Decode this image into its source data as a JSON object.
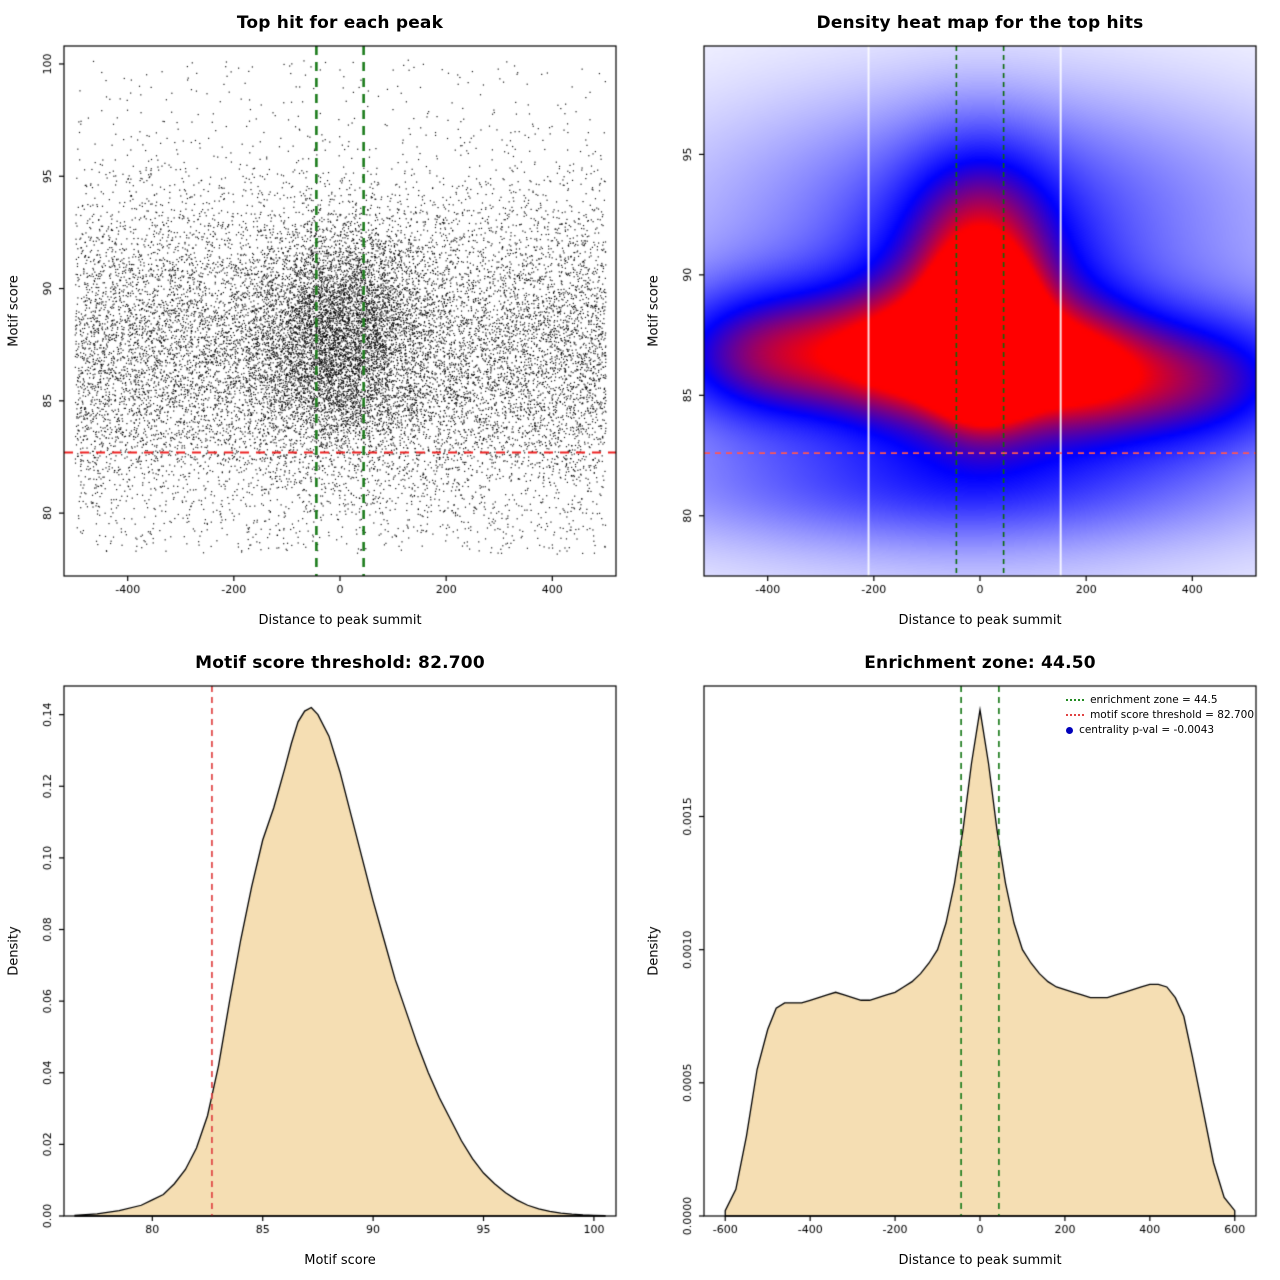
{
  "figure": {
    "background": "#ffffff",
    "panels": [
      "top-hit-scatter",
      "density-heatmap",
      "motif-score-density",
      "distance-density"
    ]
  },
  "chart_data": [
    {
      "type": "scatter",
      "title": "Top hit for each peak",
      "xlabel": "Distance to peak summit",
      "ylabel": "Motif score",
      "xlim": [
        -520,
        520
      ],
      "ylim": [
        77.2,
        100.8
      ],
      "xticks": [
        -400,
        -200,
        0,
        200,
        400
      ],
      "yticks": [
        80,
        85,
        90,
        95,
        100
      ],
      "point_color": "#000000",
      "vlines": [
        {
          "x": -44.5,
          "color": "#1e7d1e",
          "dash": [
            9,
            7
          ],
          "width": 2.6
        },
        {
          "x": 44.5,
          "color": "#1e7d1e",
          "dash": [
            9,
            7
          ],
          "width": 2.6
        }
      ],
      "hlines": [
        {
          "y": 82.7,
          "color": "#ee2222",
          "dash": [
            9,
            7
          ],
          "width": 1.8
        }
      ],
      "point_cloud": {
        "seed": 20240613,
        "x_range": [
          -500,
          500
        ],
        "y_range": [
          78.2,
          100.2
        ],
        "background": {
          "n": 13500,
          "y_mean": 87.1,
          "y_sd": 3.7
        },
        "cluster": {
          "n": 5200,
          "x_sd": 80,
          "y_mean": 87.9,
          "y_sd": 2.5
        },
        "uniform": {
          "n": 900
        }
      }
    },
    {
      "type": "heatmap",
      "title": "Density heat map for the top hits",
      "xlabel": "Distance to peak summit",
      "ylabel": "Motif score",
      "xlim": [
        -520,
        520
      ],
      "ylim": [
        77.5,
        99.5
      ],
      "xticks": [
        -400,
        -200,
        0,
        200,
        400
      ],
      "yticks": [
        80,
        85,
        90,
        95
      ],
      "vlines": [
        {
          "x": -44.5,
          "color": "#0b6b0b",
          "dash": [
            5,
            4
          ],
          "width": 1.6
        },
        {
          "x": 44.5,
          "color": "#0b6b0b",
          "dash": [
            5,
            4
          ],
          "width": 1.6
        }
      ],
      "hlines": [
        {
          "y": 82.6,
          "color": "#ff5555",
          "dash": [
            6,
            5
          ],
          "width": 1.6
        }
      ],
      "white_lines": [
        -210,
        152
      ],
      "components": [
        {
          "amp": 1.3,
          "x0": 5,
          "sx": 62,
          "y0": 87.3,
          "sy": 2.0
        },
        {
          "amp": 0.5,
          "x0": 0,
          "sx": 150,
          "y0": 88.2,
          "sy": 3.6
        },
        {
          "amp": 0.62,
          "x0": -380,
          "sx": 150,
          "y0": 86.7,
          "sy": 1.9
        },
        {
          "amp": 0.55,
          "x0": 380,
          "sx": 170,
          "y0": 85.6,
          "sy": 1.9
        },
        {
          "amp": 0.5,
          "x0": -130,
          "sx": 110,
          "y0": 86.6,
          "sy": 1.8
        },
        {
          "amp": 0.48,
          "x0": 160,
          "sx": 110,
          "y0": 86.2,
          "sy": 1.8
        },
        {
          "amp": 0.26,
          "x0": 0,
          "sx": 430,
          "y0": 87.2,
          "sy": 5.5
        },
        {
          "amp": 0.22,
          "x0": -60,
          "sx": 380,
          "y0": 81.2,
          "sy": 1.6
        },
        {
          "amp": 0.14,
          "x0": 60,
          "sx": 330,
          "y0": 93.8,
          "sy": 2.6
        },
        {
          "amp": 0.3,
          "x0": 0,
          "sx": 90,
          "y0": 92.0,
          "sy": 2.6
        }
      ]
    },
    {
      "type": "density",
      "title": "Motif score threshold: 82.700",
      "xlabel": "Motif score",
      "ylabel": "Density",
      "xlim": [
        76,
        101
      ],
      "ylim": [
        0,
        0.148
      ],
      "xticks": [
        80,
        85,
        90,
        95,
        100
      ],
      "yticks": [
        0,
        0.02,
        0.04,
        0.06,
        0.08,
        0.1,
        0.12,
        0.14
      ],
      "ytick_labels": [
        "0.00",
        "0.02",
        "0.04",
        "0.06",
        "0.08",
        "0.10",
        "0.12",
        "0.14"
      ],
      "fill": "#F5DEB3",
      "line_color": "#000000",
      "vlines": [
        {
          "x": 82.7,
          "color": "#e04343",
          "dash": [
            6,
            5
          ],
          "width": 1.7
        }
      ],
      "curve": {
        "x": [
          76.5,
          77.5,
          78.5,
          79.5,
          80,
          80.5,
          81,
          81.5,
          82,
          82.5,
          83,
          83.5,
          84,
          84.5,
          85,
          85.5,
          86,
          86.3,
          86.6,
          86.9,
          87.2,
          87.5,
          88,
          88.5,
          89,
          89.5,
          90,
          90.5,
          91,
          91.5,
          92,
          92.5,
          93,
          93.5,
          94,
          94.5,
          95,
          95.5,
          96,
          96.5,
          97,
          97.5,
          98,
          98.5,
          99,
          99.5,
          100,
          100.5
        ],
        "y": [
          0.0002,
          0.0006,
          0.0015,
          0.003,
          0.0045,
          0.006,
          0.009,
          0.013,
          0.019,
          0.028,
          0.042,
          0.06,
          0.077,
          0.092,
          0.105,
          0.114,
          0.125,
          0.132,
          0.138,
          0.141,
          0.142,
          0.14,
          0.134,
          0.124,
          0.112,
          0.1,
          0.088,
          0.077,
          0.066,
          0.057,
          0.048,
          0.04,
          0.033,
          0.027,
          0.021,
          0.016,
          0.012,
          0.009,
          0.0065,
          0.0045,
          0.003,
          0.002,
          0.0013,
          0.0008,
          0.0005,
          0.0003,
          0.0002,
          0.0001
        ]
      }
    },
    {
      "type": "density",
      "title": "Enrichment zone: 44.50",
      "xlabel": "Distance to peak summit",
      "ylabel": "Density",
      "xlim": [
        -650,
        650
      ],
      "ylim": [
        0,
        0.00199
      ],
      "xticks": [
        -600,
        -400,
        -200,
        0,
        200,
        400,
        600
      ],
      "yticks": [
        0,
        0.0005,
        0.001,
        0.0015
      ],
      "ytick_labels": [
        "0.0000",
        "0.0005",
        "0.0010",
        "0.0015"
      ],
      "fill": "#F5DEB3",
      "line_color": "#000000",
      "vlines": [
        {
          "x": -44.5,
          "color": "#1e7d1e",
          "dash": [
            6,
            5
          ],
          "width": 1.7
        },
        {
          "x": 44.5,
          "color": "#1e7d1e",
          "dash": [
            6,
            5
          ],
          "width": 1.7
        }
      ],
      "curve": {
        "x": [
          -600,
          -575,
          -550,
          -525,
          -500,
          -480,
          -460,
          -440,
          -420,
          -400,
          -380,
          -360,
          -340,
          -320,
          -300,
          -280,
          -260,
          -240,
          -220,
          -200,
          -180,
          -160,
          -140,
          -120,
          -100,
          -80,
          -60,
          -40,
          -20,
          0,
          20,
          40,
          60,
          80,
          100,
          120,
          140,
          160,
          180,
          200,
          220,
          240,
          260,
          280,
          300,
          320,
          340,
          360,
          380,
          400,
          420,
          440,
          460,
          480,
          500,
          525,
          550,
          575,
          600
        ],
        "y": [
          2e-05,
          0.0001,
          0.0003,
          0.00055,
          0.0007,
          0.00078,
          0.0008,
          0.0008,
          0.0008,
          0.00081,
          0.00082,
          0.00083,
          0.00084,
          0.00083,
          0.00082,
          0.00081,
          0.00081,
          0.00082,
          0.00083,
          0.00084,
          0.00086,
          0.00088,
          0.00091,
          0.00095,
          0.001,
          0.0011,
          0.00125,
          0.00145,
          0.0017,
          0.0019,
          0.0017,
          0.00145,
          0.00125,
          0.0011,
          0.001,
          0.00095,
          0.00091,
          0.00088,
          0.00086,
          0.00085,
          0.00084,
          0.00083,
          0.00082,
          0.00082,
          0.00082,
          0.00083,
          0.00084,
          0.00085,
          0.00086,
          0.00087,
          0.00087,
          0.00086,
          0.00082,
          0.00075,
          0.0006,
          0.0004,
          0.0002,
          7e-05,
          2e-05
        ]
      },
      "legend": {
        "items": [
          {
            "type": "line",
            "color": "#228B22",
            "label": "enrichment zone = 44.5"
          },
          {
            "type": "line",
            "color": "#e04343",
            "label": "motif score threshold = 82.700"
          },
          {
            "type": "point",
            "color": "#0000bb",
            "label": "centrality p-val = -0.0043"
          }
        ]
      }
    }
  ]
}
